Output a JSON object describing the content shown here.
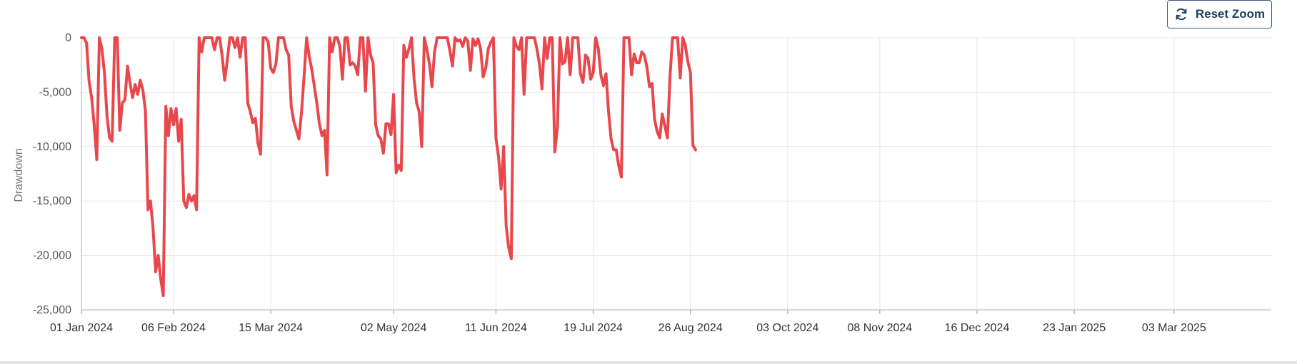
{
  "toolbar": {
    "reset_zoom_label": "Reset Zoom",
    "reset_icon": "refresh-icon"
  },
  "chart_data": {
    "type": "line",
    "title": "",
    "xlabel": "",
    "ylabel": "Drawdown",
    "ylim": [
      -25000,
      0
    ],
    "xlim": [
      "2024-01-01",
      "2025-04-10"
    ],
    "grid": true,
    "legend": "none",
    "y_ticks": [
      "0",
      "-5,000",
      "-10,000",
      "-15,000",
      "-20,000",
      "-25,000"
    ],
    "y_tick_values": [
      0,
      -5000,
      -10000,
      -15000,
      -20000,
      -25000
    ],
    "x_ticks": [
      "01 Jan 2024",
      "06 Feb 2024",
      "15 Mar 2024",
      "02 May 2024",
      "11 Jun 2024",
      "19 Jul 2024",
      "26 Aug 2024",
      "03 Oct 2024",
      "08 Nov 2024",
      "16 Dec 2024",
      "23 Jan 2025",
      "03 Mar 2025"
    ],
    "x_tick_dates": [
      "2024-01-01",
      "2024-02-06",
      "2024-03-15",
      "2024-05-02",
      "2024-06-11",
      "2024-07-19",
      "2024-08-26",
      "2024-10-03",
      "2024-11-08",
      "2024-12-16",
      "2025-01-23",
      "2025-03-03"
    ],
    "series": [
      {
        "color": "#e8474c",
        "points": [
          [
            "2024-01-01",
            0
          ],
          [
            "2024-01-02",
            0
          ],
          [
            "2024-01-03",
            -500
          ],
          [
            "2024-01-04",
            -4000
          ],
          [
            "2024-01-05",
            -5500
          ],
          [
            "2024-01-06",
            -8000
          ],
          [
            "2024-01-07",
            -11200
          ],
          [
            "2024-01-08",
            0
          ],
          [
            "2024-01-09",
            -1000
          ],
          [
            "2024-01-10",
            -3200
          ],
          [
            "2024-01-11",
            -7200
          ],
          [
            "2024-01-12",
            -9200
          ],
          [
            "2024-01-13",
            -9500
          ],
          [
            "2024-01-14",
            0
          ],
          [
            "2024-01-15",
            0
          ],
          [
            "2024-01-16",
            -8500
          ],
          [
            "2024-01-17",
            -6000
          ],
          [
            "2024-01-18",
            -5700
          ],
          [
            "2024-01-19",
            -2600
          ],
          [
            "2024-01-20",
            -4200
          ],
          [
            "2024-01-21",
            -5500
          ],
          [
            "2024-01-22",
            -4300
          ],
          [
            "2024-01-23",
            -5200
          ],
          [
            "2024-01-24",
            -3900
          ],
          [
            "2024-01-25",
            -4800
          ],
          [
            "2024-01-26",
            -6700
          ],
          [
            "2024-01-27",
            -15800
          ],
          [
            "2024-01-28",
            -15000
          ],
          [
            "2024-01-29",
            -17500
          ],
          [
            "2024-01-30",
            -21500
          ],
          [
            "2024-01-31",
            -20000
          ],
          [
            "2024-02-01",
            -22200
          ],
          [
            "2024-02-02",
            -23700
          ],
          [
            "2024-02-03",
            -6300
          ],
          [
            "2024-02-04",
            -9000
          ],
          [
            "2024-02-05",
            -6500
          ],
          [
            "2024-02-06",
            -8000
          ],
          [
            "2024-02-07",
            -6500
          ],
          [
            "2024-02-08",
            -9500
          ],
          [
            "2024-02-09",
            -7500
          ],
          [
            "2024-02-10",
            -15000
          ],
          [
            "2024-02-11",
            -15600
          ],
          [
            "2024-02-12",
            -14400
          ],
          [
            "2024-02-13",
            -15000
          ],
          [
            "2024-02-14",
            -14500
          ],
          [
            "2024-02-15",
            -15800
          ],
          [
            "2024-02-16",
            0
          ],
          [
            "2024-02-17",
            -1300
          ],
          [
            "2024-02-18",
            0
          ],
          [
            "2024-02-19",
            0
          ],
          [
            "2024-02-20",
            0
          ],
          [
            "2024-02-21",
            0
          ],
          [
            "2024-02-22",
            -1100
          ],
          [
            "2024-02-23",
            0
          ],
          [
            "2024-02-24",
            0
          ],
          [
            "2024-02-25",
            -1700
          ],
          [
            "2024-02-26",
            -3900
          ],
          [
            "2024-02-27",
            -2100
          ],
          [
            "2024-02-28",
            0
          ],
          [
            "2024-02-29",
            0
          ],
          [
            "2024-03-01",
            -900
          ],
          [
            "2024-03-02",
            0
          ],
          [
            "2024-03-03",
            -1800
          ],
          [
            "2024-03-04",
            0
          ],
          [
            "2024-03-05",
            0
          ],
          [
            "2024-03-06",
            -6000
          ],
          [
            "2024-03-07",
            -6800
          ],
          [
            "2024-03-08",
            -7800
          ],
          [
            "2024-03-09",
            -7400
          ],
          [
            "2024-03-10",
            -9700
          ],
          [
            "2024-03-11",
            -10700
          ],
          [
            "2024-03-12",
            0
          ],
          [
            "2024-03-13",
            0
          ],
          [
            "2024-03-14",
            -400
          ],
          [
            "2024-03-15",
            -2800
          ],
          [
            "2024-03-16",
            -3200
          ],
          [
            "2024-03-17",
            -2400
          ],
          [
            "2024-03-18",
            0
          ],
          [
            "2024-03-19",
            0
          ],
          [
            "2024-03-20",
            0
          ],
          [
            "2024-03-21",
            -1100
          ],
          [
            "2024-03-22",
            -1600
          ],
          [
            "2024-03-23",
            -6300
          ],
          [
            "2024-03-24",
            -7700
          ],
          [
            "2024-03-25",
            -8500
          ],
          [
            "2024-03-26",
            -9300
          ],
          [
            "2024-03-27",
            -6900
          ],
          [
            "2024-03-28",
            -3600
          ],
          [
            "2024-03-29",
            0
          ],
          [
            "2024-03-30",
            -1700
          ],
          [
            "2024-03-31",
            -2900
          ],
          [
            "2024-04-01",
            -4400
          ],
          [
            "2024-04-02",
            -6000
          ],
          [
            "2024-04-03",
            -7900
          ],
          [
            "2024-04-04",
            -9000
          ],
          [
            "2024-04-05",
            -8500
          ],
          [
            "2024-04-06",
            -12600
          ],
          [
            "2024-04-07",
            0
          ],
          [
            "2024-04-08",
            -1300
          ],
          [
            "2024-04-09",
            0
          ],
          [
            "2024-04-10",
            0
          ],
          [
            "2024-04-11",
            -800
          ],
          [
            "2024-04-12",
            -3800
          ],
          [
            "2024-04-13",
            0
          ],
          [
            "2024-04-14",
            0
          ],
          [
            "2024-04-15",
            -2500
          ],
          [
            "2024-04-16",
            -2300
          ],
          [
            "2024-04-17",
            -2600
          ],
          [
            "2024-04-18",
            -3400
          ],
          [
            "2024-04-19",
            0
          ],
          [
            "2024-04-20",
            0
          ],
          [
            "2024-04-21",
            -4900
          ],
          [
            "2024-04-22",
            0
          ],
          [
            "2024-04-23",
            -1600
          ],
          [
            "2024-04-24",
            -2300
          ],
          [
            "2024-04-25",
            -8000
          ],
          [
            "2024-04-26",
            -9000
          ],
          [
            "2024-04-27",
            -9300
          ],
          [
            "2024-04-28",
            -10600
          ],
          [
            "2024-04-29",
            -7900
          ],
          [
            "2024-04-30",
            -7900
          ],
          [
            "2024-05-01",
            -8900
          ],
          [
            "2024-05-02",
            -5200
          ],
          [
            "2024-05-03",
            -12400
          ],
          [
            "2024-05-04",
            -11700
          ],
          [
            "2024-05-05",
            -12200
          ],
          [
            "2024-05-06",
            -700
          ],
          [
            "2024-05-07",
            -1800
          ],
          [
            "2024-05-08",
            -1000
          ],
          [
            "2024-05-09",
            0
          ],
          [
            "2024-05-10",
            -3800
          ],
          [
            "2024-05-11",
            -6000
          ],
          [
            "2024-05-12",
            -6800
          ],
          [
            "2024-05-13",
            -10000
          ],
          [
            "2024-05-14",
            0
          ],
          [
            "2024-05-15",
            -1100
          ],
          [
            "2024-05-16",
            -2400
          ],
          [
            "2024-05-17",
            -4500
          ],
          [
            "2024-05-18",
            -1300
          ],
          [
            "2024-05-19",
            0
          ],
          [
            "2024-05-20",
            0
          ],
          [
            "2024-05-21",
            0
          ],
          [
            "2024-05-22",
            0
          ],
          [
            "2024-05-23",
            0
          ],
          [
            "2024-05-24",
            -1200
          ],
          [
            "2024-05-25",
            -2600
          ],
          [
            "2024-05-26",
            0
          ],
          [
            "2024-05-27",
            -300
          ],
          [
            "2024-05-28",
            -200
          ],
          [
            "2024-05-29",
            -800
          ],
          [
            "2024-05-30",
            0
          ],
          [
            "2024-05-31",
            -300
          ],
          [
            "2024-06-01",
            -3000
          ],
          [
            "2024-06-02",
            -100
          ],
          [
            "2024-06-03",
            -700
          ],
          [
            "2024-06-04",
            -100
          ],
          [
            "2024-06-05",
            -1000
          ],
          [
            "2024-06-06",
            -3600
          ],
          [
            "2024-06-07",
            -2800
          ],
          [
            "2024-06-08",
            -1000
          ],
          [
            "2024-06-09",
            -400
          ],
          [
            "2024-06-10",
            0
          ],
          [
            "2024-06-11",
            -9200
          ],
          [
            "2024-06-12",
            -10900
          ],
          [
            "2024-06-13",
            -13900
          ],
          [
            "2024-06-14",
            -10000
          ],
          [
            "2024-06-15",
            -17300
          ],
          [
            "2024-06-16",
            -19300
          ],
          [
            "2024-06-17",
            -20300
          ],
          [
            "2024-06-18",
            0
          ],
          [
            "2024-06-19",
            -800
          ],
          [
            "2024-06-20",
            -1100
          ],
          [
            "2024-06-21",
            0
          ],
          [
            "2024-06-22",
            -5200
          ],
          [
            "2024-06-23",
            0
          ],
          [
            "2024-06-24",
            0
          ],
          [
            "2024-06-25",
            0
          ],
          [
            "2024-06-26",
            0
          ],
          [
            "2024-06-27",
            -1000
          ],
          [
            "2024-06-28",
            -2400
          ],
          [
            "2024-06-29",
            -4700
          ],
          [
            "2024-06-30",
            0
          ],
          [
            "2024-07-01",
            -1900
          ],
          [
            "2024-07-02",
            0
          ],
          [
            "2024-07-03",
            0
          ],
          [
            "2024-07-04",
            -10500
          ],
          [
            "2024-07-05",
            -8300
          ],
          [
            "2024-07-06",
            0
          ],
          [
            "2024-07-07",
            -2400
          ],
          [
            "2024-07-08",
            -2200
          ],
          [
            "2024-07-09",
            0
          ],
          [
            "2024-07-10",
            -3400
          ],
          [
            "2024-07-11",
            0
          ],
          [
            "2024-07-12",
            0
          ],
          [
            "2024-07-13",
            0
          ],
          [
            "2024-07-14",
            -3300
          ],
          [
            "2024-07-15",
            -4100
          ],
          [
            "2024-07-16",
            -1600
          ],
          [
            "2024-07-17",
            -1900
          ],
          [
            "2024-07-18",
            -3800
          ],
          [
            "2024-07-19",
            -3200
          ],
          [
            "2024-07-20",
            0
          ],
          [
            "2024-07-21",
            -1000
          ],
          [
            "2024-07-22",
            -3400
          ],
          [
            "2024-07-23",
            -4400
          ],
          [
            "2024-07-24",
            -3300
          ],
          [
            "2024-07-25",
            -6800
          ],
          [
            "2024-07-26",
            -9300
          ],
          [
            "2024-07-27",
            -10300
          ],
          [
            "2024-07-28",
            -10300
          ],
          [
            "2024-07-29",
            -11800
          ],
          [
            "2024-07-30",
            -12800
          ],
          [
            "2024-07-31",
            0
          ],
          [
            "2024-08-01",
            0
          ],
          [
            "2024-08-02",
            0
          ],
          [
            "2024-08-03",
            -3400
          ],
          [
            "2024-08-04",
            -1500
          ],
          [
            "2024-08-05",
            -2300
          ],
          [
            "2024-08-06",
            -2300
          ],
          [
            "2024-08-07",
            -1300
          ],
          [
            "2024-08-08",
            -1600
          ],
          [
            "2024-08-09",
            -2700
          ],
          [
            "2024-08-10",
            -4500
          ],
          [
            "2024-08-11",
            -4200
          ],
          [
            "2024-08-12",
            -7500
          ],
          [
            "2024-08-13",
            -8600
          ],
          [
            "2024-08-14",
            -9200
          ],
          [
            "2024-08-15",
            -7000
          ],
          [
            "2024-08-16",
            -8100
          ],
          [
            "2024-08-17",
            -9200
          ],
          [
            "2024-08-18",
            -3700
          ],
          [
            "2024-08-19",
            0
          ],
          [
            "2024-08-20",
            0
          ],
          [
            "2024-08-21",
            0
          ],
          [
            "2024-08-22",
            -3700
          ],
          [
            "2024-08-23",
            0
          ],
          [
            "2024-08-24",
            -700
          ],
          [
            "2024-08-25",
            -2200
          ],
          [
            "2024-08-26",
            -3200
          ],
          [
            "2024-08-27",
            -9900
          ],
          [
            "2024-08-28",
            -10300
          ]
        ]
      }
    ]
  }
}
